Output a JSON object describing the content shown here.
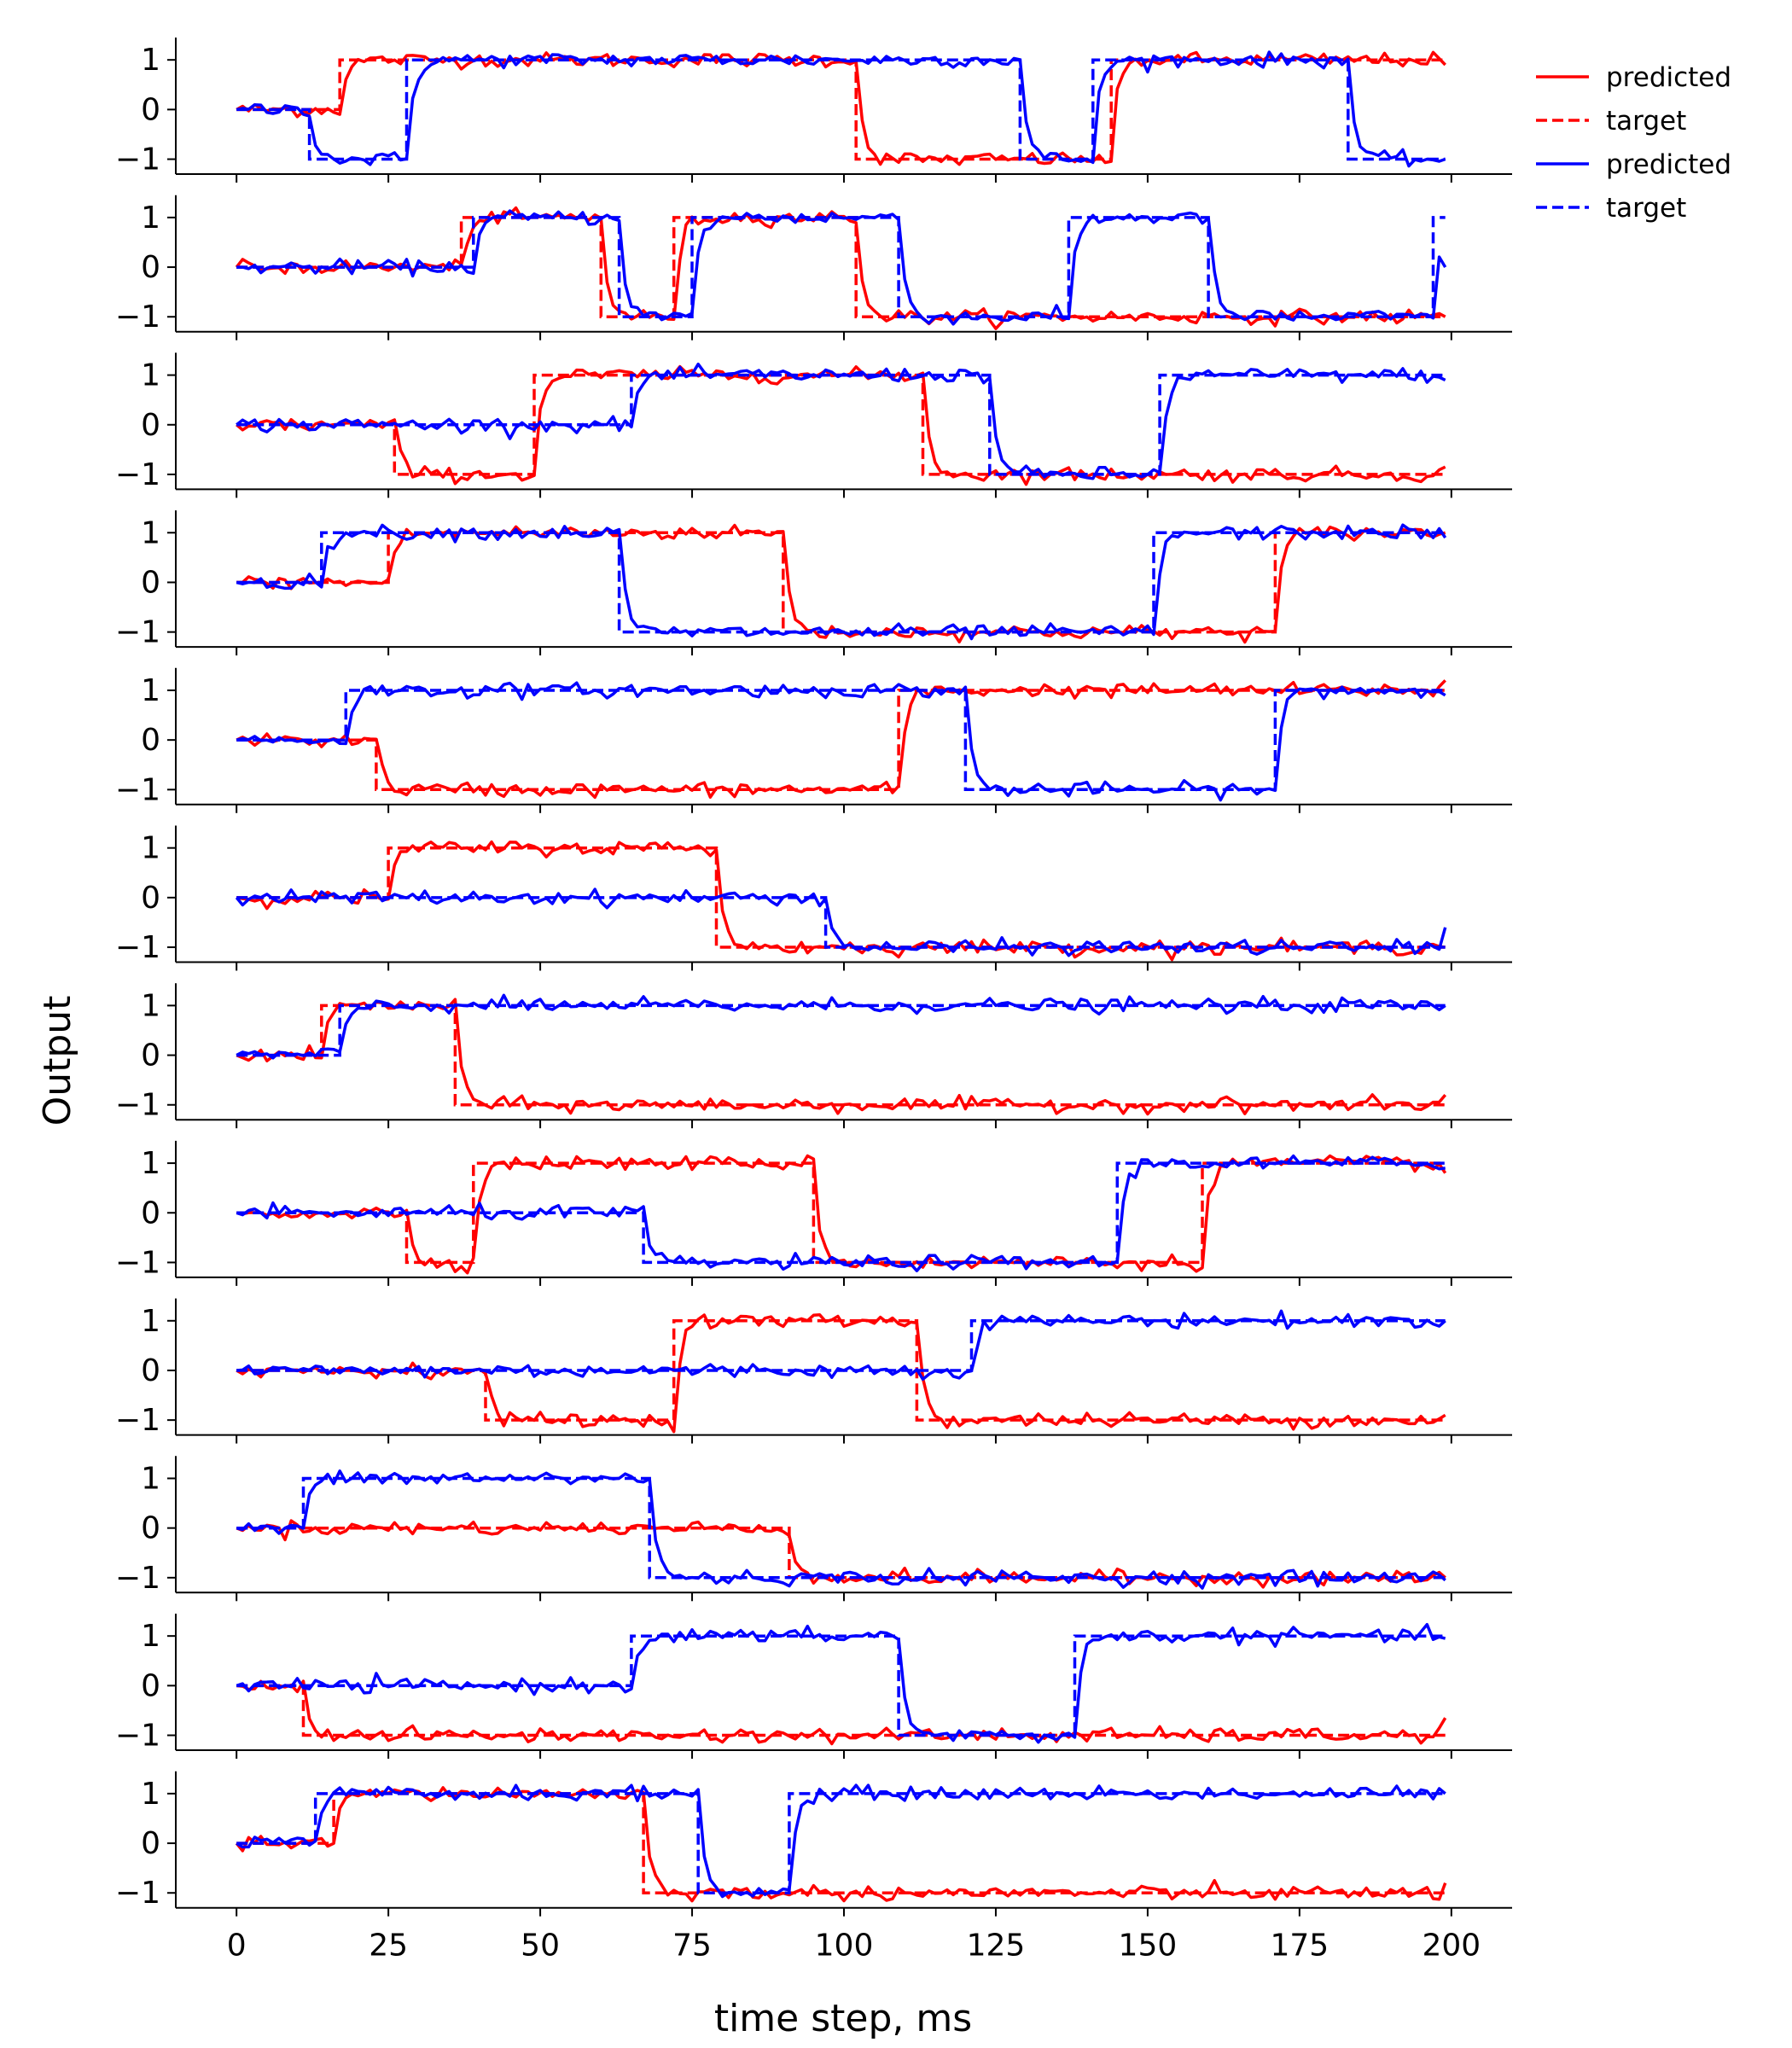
{
  "chart_data": {
    "type": "line",
    "xlabel": "time step, ms",
    "ylabel": "Output",
    "xlim": [
      -10,
      210
    ],
    "ylim": [
      -1.3,
      1.45
    ],
    "x_ticks": [
      0,
      25,
      50,
      75,
      100,
      125,
      150,
      175,
      200
    ],
    "y_ticks": [
      -1,
      0,
      1
    ],
    "grid": false,
    "legend_position": "top-right, outside plot area",
    "legend": [
      {
        "label": "predicted",
        "color": "#ff0000",
        "style": "solid"
      },
      {
        "label": "target",
        "color": "#ff0000",
        "style": "dashed"
      },
      {
        "label": "predicted",
        "color": "#0000ff",
        "style": "solid"
      },
      {
        "label": "target",
        "color": "#0000ff",
        "style": "dashed"
      }
    ],
    "colors": {
      "red": "#ff0000",
      "blue": "#0000ff"
    },
    "time_steps": 200,
    "panels": [
      {
        "red_target": [
          [
            0,
            0
          ],
          [
            18,
            1
          ],
          [
            103,
            -1
          ],
          [
            145,
            1
          ]
        ],
        "blue_target": [
          [
            0,
            0
          ],
          [
            13,
            -1
          ],
          [
            29,
            1
          ],
          [
            130,
            -1
          ],
          [
            142,
            1
          ],
          [
            184,
            -1
          ]
        ],
        "red_end": 0.9,
        "blue_end": -1.0
      },
      {
        "red_target": [
          [
            0,
            0
          ],
          [
            38,
            1
          ],
          [
            61,
            -1
          ],
          [
            73,
            1
          ],
          [
            103,
            -1
          ]
        ],
        "blue_target": [
          [
            0,
            0
          ],
          [
            40,
            1
          ],
          [
            64,
            -1
          ],
          [
            76,
            1
          ],
          [
            110,
            -1
          ],
          [
            138,
            1
          ],
          [
            161,
            -1
          ],
          [
            198,
            1
          ]
        ],
        "red_end": -1.0,
        "blue_end": 0.0
      },
      {
        "red_target": [
          [
            0,
            0
          ],
          [
            27,
            -1
          ],
          [
            50,
            1
          ],
          [
            114,
            -1
          ]
        ],
        "blue_target": [
          [
            0,
            0
          ],
          [
            66,
            1
          ],
          [
            125,
            -1
          ],
          [
            153,
            1
          ]
        ],
        "red_end": -0.85,
        "blue_end": 0.9
      },
      {
        "red_target": [
          [
            0,
            0
          ],
          [
            26,
            1
          ],
          [
            91,
            -1
          ],
          [
            172,
            1
          ]
        ],
        "blue_target": [
          [
            0,
            0
          ],
          [
            15,
            1
          ],
          [
            64,
            -1
          ],
          [
            152,
            1
          ]
        ],
        "red_end": 1.0,
        "blue_end": 0.9
      },
      {
        "red_target": [
          [
            0,
            0
          ],
          [
            24,
            -1
          ],
          [
            110,
            1
          ]
        ],
        "blue_target": [
          [
            0,
            0
          ],
          [
            19,
            1
          ],
          [
            121,
            -1
          ],
          [
            172,
            1
          ]
        ],
        "red_end": 1.2,
        "blue_end": 0.9
      },
      {
        "red_target": [
          [
            0,
            0
          ],
          [
            26,
            1
          ],
          [
            80,
            -1
          ]
        ],
        "blue_target": [
          [
            0,
            0
          ],
          [
            98,
            -1
          ]
        ],
        "red_end": -1.0,
        "blue_end": -0.6
      },
      {
        "red_target": [
          [
            0,
            0
          ],
          [
            15,
            1
          ],
          [
            37,
            -1
          ]
        ],
        "blue_target": [
          [
            0,
            0
          ],
          [
            18,
            1
          ]
        ],
        "red_end": -0.8,
        "blue_end": 1.0
      },
      {
        "red_target": [
          [
            0,
            0
          ],
          [
            29,
            -1
          ],
          [
            40,
            1
          ],
          [
            96,
            -1
          ],
          [
            160,
            1
          ]
        ],
        "blue_target": [
          [
            0,
            0
          ],
          [
            68,
            -1
          ],
          [
            146,
            1
          ]
        ],
        "red_end": 0.8,
        "blue_end": 0.9
      },
      {
        "red_target": [
          [
            0,
            0
          ],
          [
            42,
            -1
          ],
          [
            73,
            1
          ],
          [
            113,
            -1
          ]
        ],
        "blue_target": [
          [
            0,
            0
          ],
          [
            122,
            1
          ]
        ],
        "red_end": -0.9,
        "blue_end": 1.0
      },
      {
        "red_target": [
          [
            0,
            0
          ],
          [
            92,
            -1
          ]
        ],
        "blue_target": [
          [
            0,
            0
          ],
          [
            12,
            1
          ],
          [
            69,
            -1
          ]
        ],
        "red_end": -1.0,
        "blue_end": -1.05
      },
      {
        "red_target": [
          [
            0,
            0
          ],
          [
            12,
            -1
          ]
        ],
        "blue_target": [
          [
            0,
            0
          ],
          [
            66,
            1
          ],
          [
            110,
            -1
          ],
          [
            139,
            1
          ]
        ],
        "red_end": -0.65,
        "blue_end": 0.95
      },
      {
        "red_target": [
          [
            0,
            0
          ],
          [
            17,
            1
          ],
          [
            68,
            -1
          ]
        ],
        "blue_target": [
          [
            0,
            0
          ],
          [
            14,
            1
          ],
          [
            77,
            -1
          ],
          [
            92,
            1
          ]
        ],
        "red_end": -0.8,
        "blue_end": 1.0
      }
    ]
  }
}
